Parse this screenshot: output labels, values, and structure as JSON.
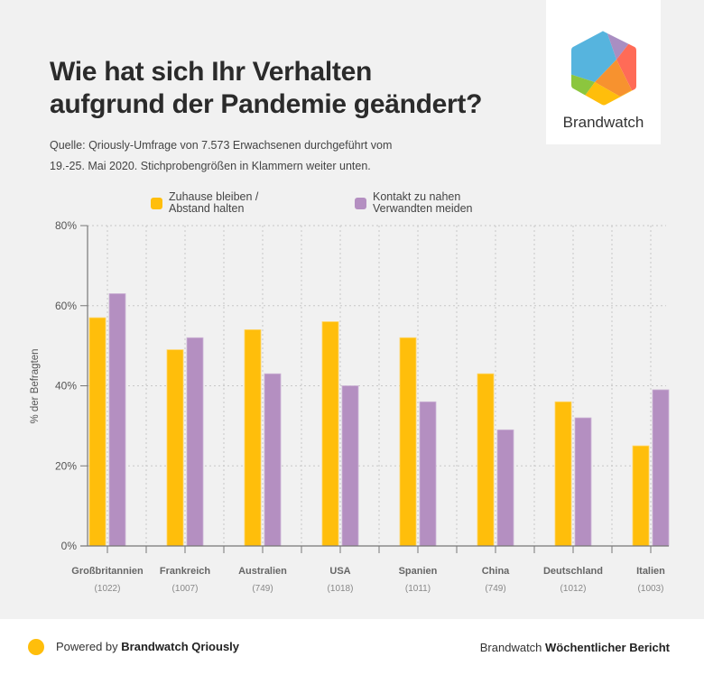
{
  "header": {
    "title_lines": [
      "Wie hat sich Ihr Verhalten",
      "aufgrund der Pandemie geändert?"
    ],
    "subtitle_lines": [
      "Quelle: Qriously-Umfrage von 7.573 Erwachsenen durchgeführt vom",
      "19.-25. Mai 2020. Stichprobengrößen in Klammern weiter unten."
    ]
  },
  "logo": {
    "name": "Brandwatch",
    "icon": "brandwatch-hexagon-logo",
    "colors": {
      "blue": "#56b4de",
      "purple": "#a98ec2",
      "red": "#ff6b57",
      "orange": "#f7922f",
      "yellow": "#ffbe0b",
      "green": "#8cc63e"
    }
  },
  "chart_data": {
    "type": "bar",
    "title": "Wie hat sich Ihr Verhalten aufgrund der Pandemie geändert?",
    "xlabel": "",
    "ylabel": "% der Befragten",
    "ylim": [
      0,
      80
    ],
    "yticks": [
      0,
      20,
      40,
      60,
      80
    ],
    "ytick_labels": [
      "0%",
      "20%",
      "40%",
      "60%",
      "80%"
    ],
    "grid": true,
    "legend_position": "top",
    "categories": [
      "Großbritannien",
      "Frankreich",
      "Australien",
      "USA",
      "Spanien",
      "China",
      "Deutschland",
      "Italien"
    ],
    "sample_sizes": [
      "(1022)",
      "(1007)",
      "(749)",
      "(1018)",
      "(1011)",
      "(749)",
      "(1012)",
      "(1003)"
    ],
    "series": [
      {
        "name": "Zuhause bleiben / Abstand halten",
        "legend_lines": [
          "Zuhause bleiben /",
          "Abstand halten"
        ],
        "color": "#ffbe0b",
        "values": [
          57,
          49,
          54,
          56,
          52,
          43,
          36,
          25
        ]
      },
      {
        "name": "Kontakt zu nahen Verwandten meiden",
        "legend_lines": [
          "Kontakt zu nahen",
          "Verwandten meiden"
        ],
        "color": "#b48fc1",
        "values": [
          63,
          52,
          43,
          40,
          36,
          29,
          32,
          39
        ]
      }
    ]
  },
  "footer": {
    "powered_prefix": "Powered by ",
    "powered_brand": "Brandwatch Qriously",
    "report_prefix": "Brandwatch ",
    "report_name": "Wöchentlicher Bericht",
    "dot_color": "#ffbe0b"
  }
}
